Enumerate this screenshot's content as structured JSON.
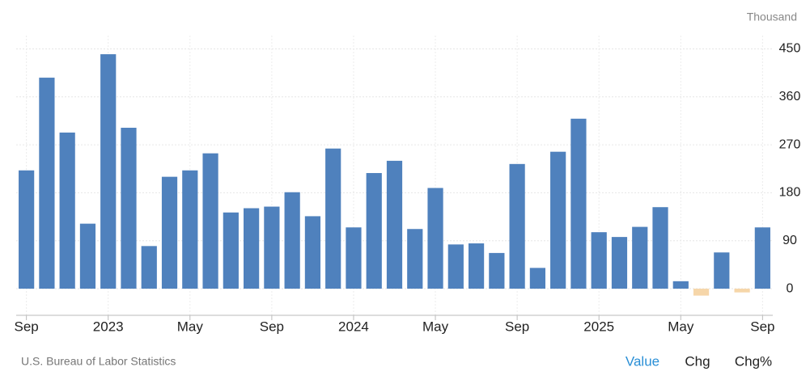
{
  "chart_data": {
    "type": "bar",
    "unit_label": "Thousand",
    "source": "U.S. Bureau of Labor Statistics",
    "buttons": [
      "Value",
      "Chg",
      "Chg%"
    ],
    "categories": [
      "Sep",
      null,
      null,
      null,
      "2023",
      null,
      null,
      null,
      "May",
      null,
      null,
      null,
      "Sep",
      null,
      null,
      null,
      "2024",
      null,
      null,
      null,
      "May",
      null,
      null,
      null,
      "Sep",
      null,
      null,
      null,
      "2025",
      null,
      null,
      null,
      "May",
      null,
      null,
      null,
      "Sep"
    ],
    "values": [
      222,
      396,
      293,
      122,
      440,
      302,
      80,
      210,
      222,
      254,
      143,
      151,
      154,
      181,
      136,
      263,
      115,
      217,
      240,
      112,
      189,
      83,
      85,
      67,
      234,
      39,
      257,
      319,
      106,
      97,
      116,
      153,
      14,
      -13,
      68,
      -7,
      115
    ],
    "color": "#4f81bd",
    "negative_color": "#f6d6a9",
    "ylim": [
      -50,
      475
    ],
    "yticks": [
      0,
      90,
      180,
      270,
      360,
      450
    ],
    "grid": true
  }
}
